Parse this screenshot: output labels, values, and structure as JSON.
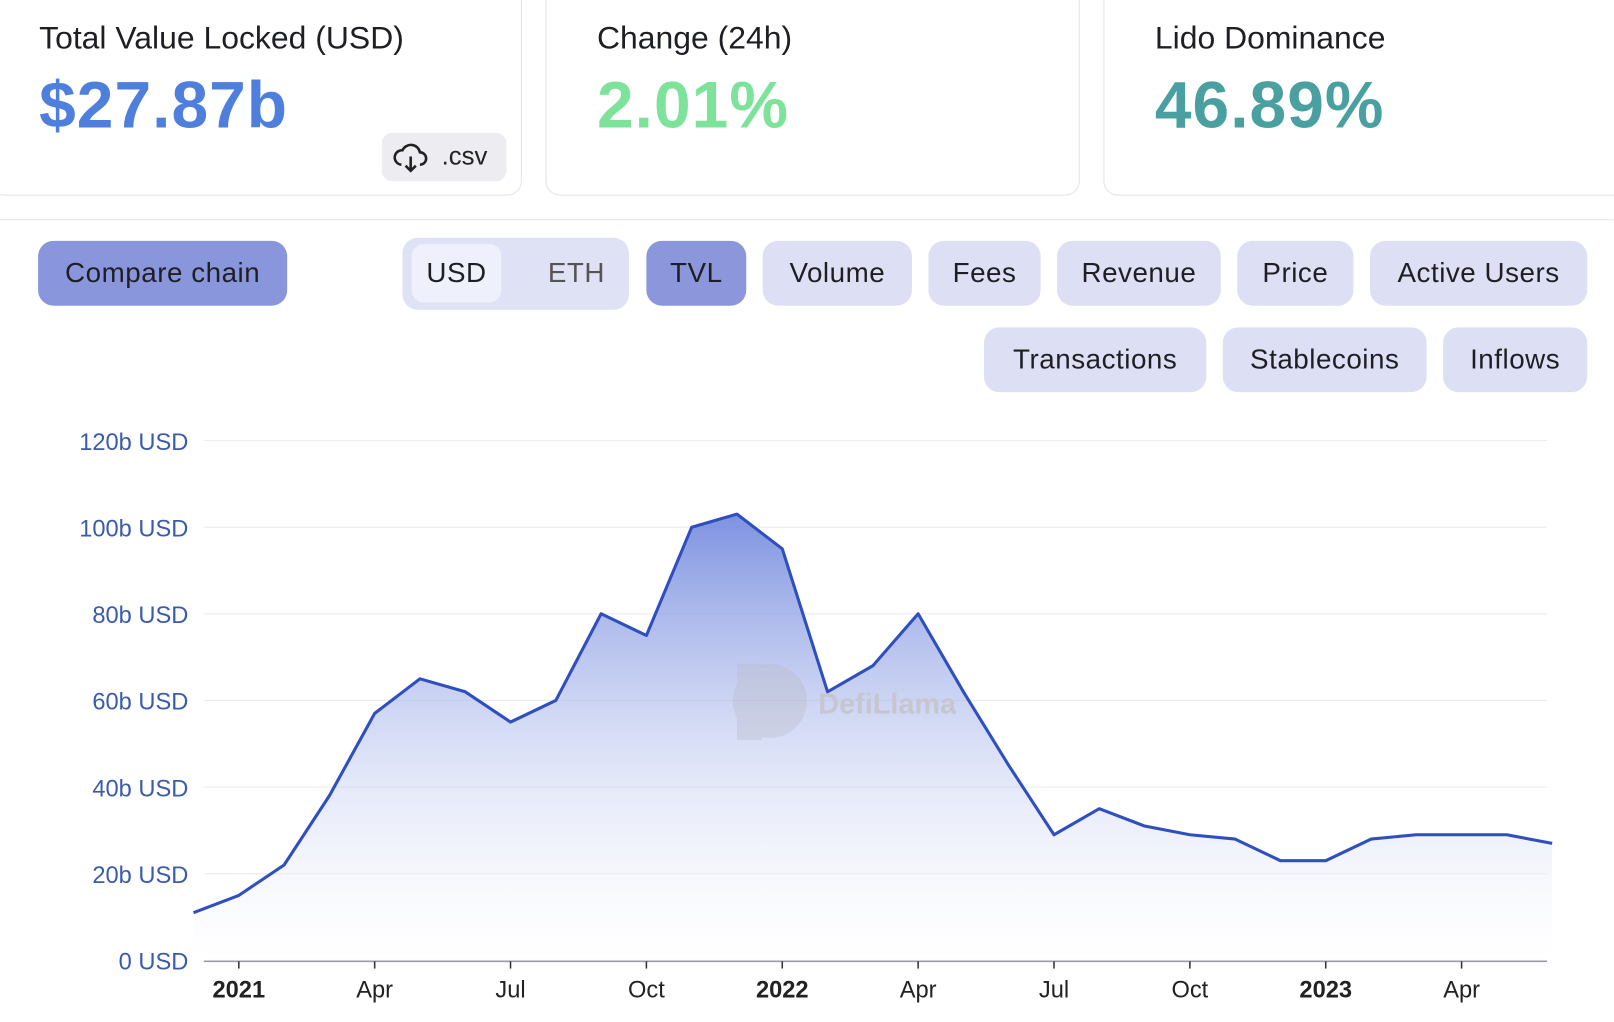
{
  "stats": [
    {
      "label": "Total Value Locked (USD)",
      "value": "$27.87b"
    },
    {
      "label": "Change (24h)",
      "value": "2.01%"
    },
    {
      "label": "Lido Dominance",
      "value": "46.89%"
    }
  ],
  "csv_button": ".csv",
  "compare_button": "Compare chain",
  "denomination": [
    "USD",
    "ETH"
  ],
  "metrics": [
    "TVL",
    "Volume",
    "Fees",
    "Revenue",
    "Price",
    "Active Users"
  ],
  "metrics_row2": [
    "Transactions",
    "Stablecoins",
    "Inflows"
  ],
  "watermark": "DefiLlama",
  "chart_data": {
    "type": "area",
    "x": [
      "2020-12",
      "2021-01",
      "2021-02",
      "2021-03",
      "2021-04",
      "2021-05",
      "2021-06",
      "2021-07",
      "2021-08",
      "2021-09",
      "2021-10",
      "2021-11",
      "2021-12",
      "2022-01",
      "2022-02",
      "2022-03",
      "2022-04",
      "2022-05",
      "2022-06",
      "2022-07",
      "2022-08",
      "2022-09",
      "2022-10",
      "2022-11",
      "2022-12",
      "2023-01",
      "2023-02",
      "2023-03",
      "2023-04",
      "2023-05",
      "2023-06"
    ],
    "values": [
      11,
      15,
      22,
      38,
      57,
      65,
      62,
      55,
      60,
      80,
      75,
      100,
      103,
      95,
      62,
      68,
      80,
      62,
      45,
      29,
      35,
      31,
      29,
      28,
      23,
      23,
      28,
      29,
      29,
      29,
      27
    ],
    "color": "#2f4fbf",
    "xlim": [
      "2020-12",
      "2023-06"
    ],
    "ylim": [
      0,
      120
    ],
    "yticks": [
      {
        "value": 0,
        "label": "0 USD"
      },
      {
        "value": 20,
        "label": "20b USD"
      },
      {
        "value": 40,
        "label": "40b USD"
      },
      {
        "value": 60,
        "label": "60b USD"
      },
      {
        "value": 80,
        "label": "80b USD"
      },
      {
        "value": 100,
        "label": "100b USD"
      },
      {
        "value": 120,
        "label": "120b USD"
      }
    ],
    "xticks": [
      {
        "value": "2021-01",
        "label": "2021"
      },
      {
        "value": "2021-04",
        "label": "Apr"
      },
      {
        "value": "2021-07",
        "label": "Jul"
      },
      {
        "value": "2021-10",
        "label": "Oct"
      },
      {
        "value": "2022-01",
        "label": "2022"
      },
      {
        "value": "2022-04",
        "label": "Apr"
      },
      {
        "value": "2022-07",
        "label": "Jul"
      },
      {
        "value": "2022-10",
        "label": "Oct"
      },
      {
        "value": "2023-01",
        "label": "2023"
      },
      {
        "value": "2023-04",
        "label": "Apr"
      }
    ],
    "grid": true
  }
}
